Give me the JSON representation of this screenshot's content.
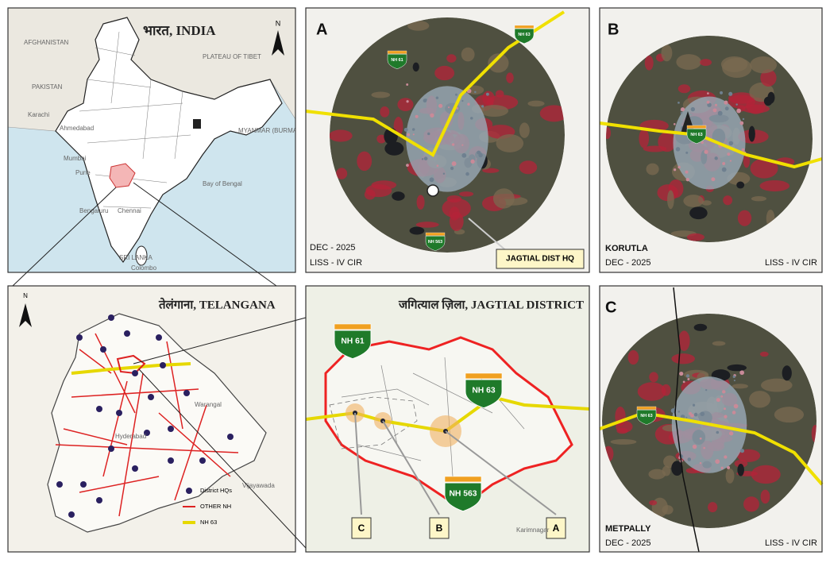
{
  "india": {
    "title": "भारत,  INDIA",
    "north": "N",
    "places": [
      "AFGHANISTAN",
      "PAKISTAN",
      "PLATEAU OF TIBET",
      "Karachi",
      "Ahmedabad",
      "Mumbai",
      "Pune",
      "Bengaluru",
      "Chennai",
      "Bay of Bengal",
      "SRI LANKA",
      "Colombo",
      "MYANMAR (BURMA)"
    ]
  },
  "telangana": {
    "title": "तेलंगाना, TELANGANA",
    "north": "N",
    "places": [
      "Warangal",
      "Hyderabad",
      "Vijayawada"
    ],
    "legend": [
      "District HQs",
      "OTHER NH",
      "NH 63"
    ]
  },
  "jagtial": {
    "title": "जगित्याल  ज़िला, JAGTIAL DISTRICT",
    "highways": [
      "NH 61",
      "NH 63",
      "NH 563"
    ],
    "callouts": [
      "C",
      "B",
      "A"
    ],
    "places": [
      "Karimnagar"
    ]
  },
  "panel_a": {
    "letter": "A",
    "date": "DEC - 2025",
    "sensor": "LISS - IV CIR",
    "note": "JAGTIAL DIST HQ",
    "highways": [
      "NH 61",
      "NH 63",
      "NH 563"
    ]
  },
  "panel_b": {
    "letter": "B",
    "town": "KORUTLA",
    "date": "DEC - 2025",
    "sensor": "LISS - IV CIR",
    "highways": [
      "NH 63"
    ]
  },
  "panel_c": {
    "letter": "C",
    "town": "METPALLY",
    "date": "DEC - 2025",
    "sensor": "LISS - IV CIR",
    "highways": [
      "NH 63"
    ]
  }
}
